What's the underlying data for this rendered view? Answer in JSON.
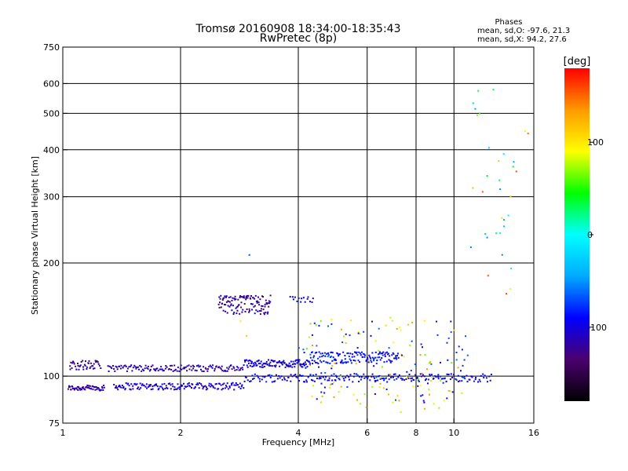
{
  "chart_data": {
    "type": "scatter",
    "title": "Tromsø 20160908 18:34:00-18:35:43",
    "subtitle": "RwPretec (8p)",
    "stats": {
      "heading": "Phases",
      "line_o": "mean, sd,O: -97.6, 21.3",
      "line_x": "mean, sd,X:  94.2, 27.6"
    },
    "xlabel": "Frequency [MHz]",
    "ylabel": "Stationary phase Virtual Height [km]",
    "xscale": "log",
    "yscale": "log",
    "xlim": [
      1,
      16
    ],
    "ylim": [
      75,
      750
    ],
    "x_ticks": [
      {
        "value": 1,
        "label": "1"
      },
      {
        "value": 2,
        "label": "2"
      },
      {
        "value": 4,
        "label": "4"
      },
      {
        "value": 6,
        "label": "6"
      },
      {
        "value": 8,
        "label": "8"
      },
      {
        "value": 10,
        "label": "10"
      },
      {
        "value": 16,
        "label": "16"
      }
    ],
    "x_grid": [
      2,
      4,
      6,
      8,
      10
    ],
    "y_ticks": [
      {
        "value": 75,
        "label": "75"
      },
      {
        "value": 100,
        "label": "100"
      },
      {
        "value": 200,
        "label": "200"
      },
      {
        "value": 300,
        "label": "300"
      },
      {
        "value": 400,
        "label": "400"
      },
      {
        "value": 500,
        "label": "500"
      },
      {
        "value": 600,
        "label": "600"
      },
      {
        "value": 750,
        "label": "750"
      }
    ],
    "y_grid": [
      100,
      200,
      300,
      400,
      500,
      600
    ],
    "colorbar": {
      "label": "[deg]",
      "range": [
        -180,
        180
      ],
      "ticks": [
        {
          "value": 100,
          "label": "100"
        },
        {
          "value": 0,
          "label": "0"
        },
        {
          "value": -100,
          "label": "-100"
        }
      ],
      "colors": [
        "#000000",
        "#4b006e",
        "#0000ff",
        "#00aaff",
        "#00ffff",
        "#00ff00",
        "#ffff00",
        "#ff9900",
        "#ff0000"
      ]
    },
    "traces": [
      {
        "phase": -120,
        "x_start": 1.03,
        "x_end": 1.28,
        "y": 93,
        "jitter": 1.5,
        "count": 60
      },
      {
        "phase": -105,
        "x_start": 1.35,
        "x_end": 2.9,
        "y": 94,
        "jitter": 2,
        "count": 150
      },
      {
        "phase": -95,
        "x_start": 2.9,
        "x_end": 12.5,
        "y": 99,
        "jitter": 2.5,
        "count": 200
      },
      {
        "phase": -120,
        "x_start": 1.04,
        "x_end": 1.25,
        "y": 107,
        "jitter": 3,
        "count": 45
      },
      {
        "phase": -115,
        "x_start": 1.3,
        "x_end": 2.9,
        "y": 105,
        "jitter": 2,
        "count": 140
      },
      {
        "phase": -100,
        "x_start": 2.9,
        "x_end": 4.3,
        "y": 108,
        "jitter": 2.5,
        "count": 110
      },
      {
        "phase": -90,
        "x_start": 4.3,
        "x_end": 7.2,
        "y": 112,
        "jitter": 4,
        "count": 140
      },
      {
        "phase": -120,
        "x_start": 2.5,
        "x_end": 3.4,
        "y": 155,
        "jitter": 9,
        "count": 120
      },
      {
        "phase": -95,
        "x_start": 3.8,
        "x_end": 4.4,
        "y": 160,
        "jitter": 3,
        "count": 15
      }
    ],
    "scatter_regions": [
      {
        "phase_min": 60,
        "phase_max": 140,
        "x_start": 4.2,
        "x_end": 10.5,
        "y_min": 80,
        "y_max": 145,
        "count": 90
      },
      {
        "phase_min": -110,
        "phase_max": -60,
        "x_start": 4.0,
        "x_end": 11.0,
        "y_min": 85,
        "y_max": 140,
        "count": 90
      },
      {
        "phase_min": -60,
        "phase_max": 40,
        "x_start": 10.8,
        "x_end": 14.5,
        "y_min": 180,
        "y_max": 580,
        "count": 22
      },
      {
        "phase_min": 90,
        "phase_max": 170,
        "x_start": 11.0,
        "x_end": 15.5,
        "y_min": 160,
        "y_max": 560,
        "count": 12
      }
    ],
    "isolated_points": [
      {
        "x": 3.0,
        "y": 210,
        "phase": -70
      },
      {
        "x": 2.85,
        "y": 140,
        "phase": 100
      },
      {
        "x": 2.95,
        "y": 128,
        "phase": 120
      }
    ]
  }
}
